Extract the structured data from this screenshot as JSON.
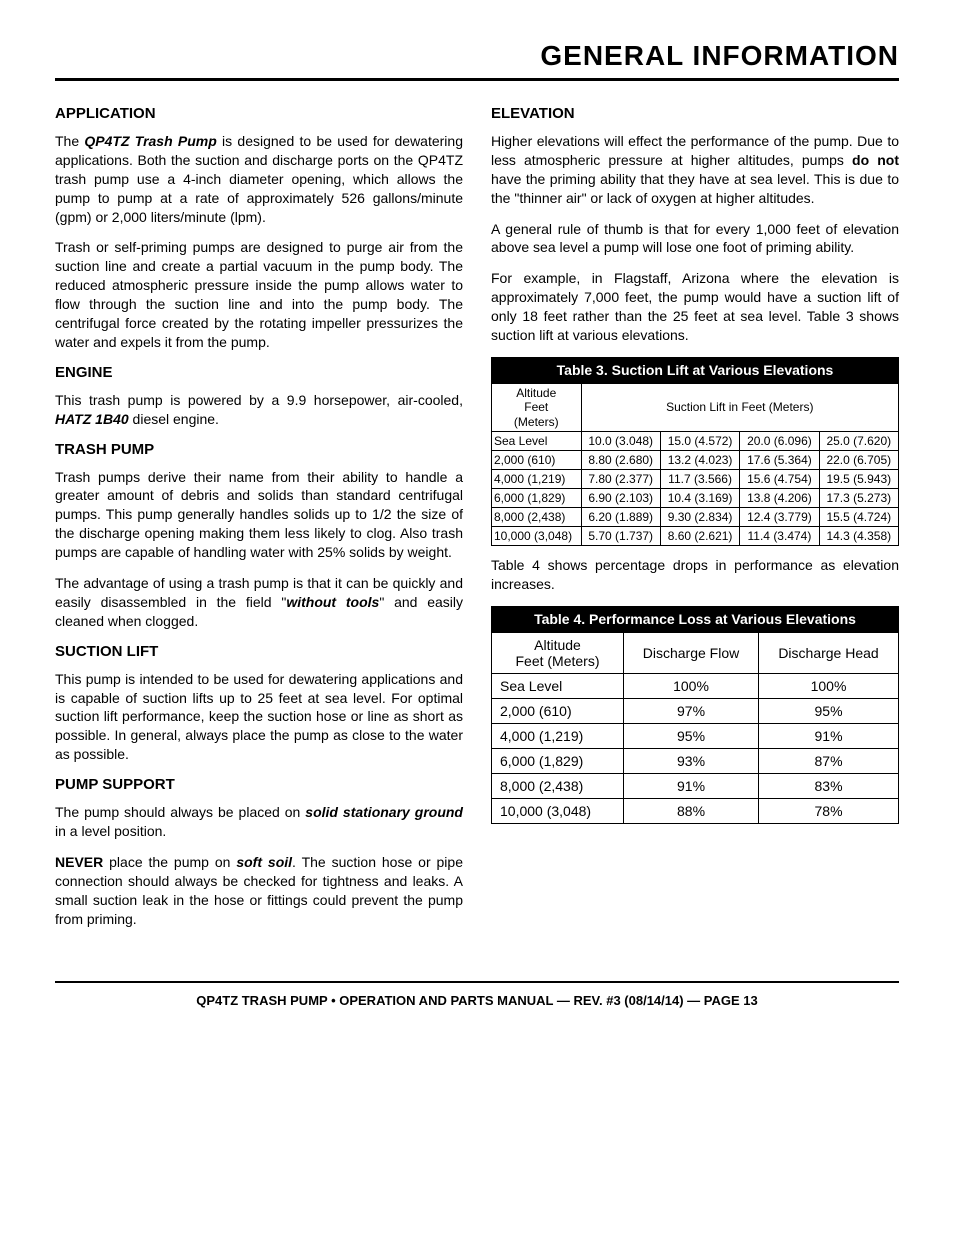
{
  "page_title": "GENERAL INFORMATION",
  "left": {
    "application_h": "APPLICATION",
    "application_p1a": "The ",
    "application_p1b": "QP4TZ Trash Pump",
    "application_p1c": " is designed to be used for dewatering applications. Both the suction and discharge ports on the QP4TZ trash pump use a 4-inch diameter opening, which allows the pump to pump at a rate of approximately 526 gallons/minute (gpm) or 2,000 liters/minute (lpm).",
    "application_p2": "Trash or self-priming pumps are designed to purge air from the suction line and create a partial vacuum in the pump body. The reduced atmospheric pressure inside the pump allows water to flow through the suction line and into the pump body. The centrifugal force created by the rotating impeller pressurizes the water and expels it from the pump.",
    "engine_h": "ENGINE",
    "engine_p1a": "This trash pump is powered by a 9.9 horsepower, air-cooled, ",
    "engine_p1b": "HATZ 1B40",
    "engine_p1c": " diesel engine.",
    "trash_h": "TRASH PUMP",
    "trash_p1": "Trash pumps derive their name from their ability to handle a greater amount of debris and solids than standard centrifugal pumps. This pump generally handles solids up to 1/2 the size of the discharge opening making them less likely to clog. Also trash pumps are capable of handling water with 25% solids by weight.",
    "trash_p2a": "The advantage of using a trash pump is that it can be quickly and easily disassembled in the field \"",
    "trash_p2b": "without tools",
    "trash_p2c": "\" and easily cleaned when clogged.",
    "suction_h": "SUCTION LIFT",
    "suction_p1": "This pump is intended to be used for dewatering applications and is capable of suction lifts up to 25 feet at sea level. For optimal suction lift performance, keep the suction hose or line as short as possible. In general, always place the pump as close to the water as possible.",
    "support_h": "PUMP SUPPORT",
    "support_p1a": "The pump should always be placed on ",
    "support_p1b": "solid stationary ground",
    "support_p1c": " in a level position.",
    "support_p2a": "NEVER",
    "support_p2b": " place the pump on ",
    "support_p2c": "soft soil",
    "support_p2d": ". The suction hose or pipe connection should always be checked for tightness and leaks. A small suction leak in the hose or fittings could prevent the pump from priming."
  },
  "right": {
    "elev_h": "ELEVATION",
    "elev_p1a": "Higher elevations will effect the performance of the pump. Due to less atmospheric pressure at higher altitudes, pumps ",
    "elev_p1b": "do not",
    "elev_p1c": " have the priming ability that they have at sea level. This is due to the \"thinner air\" or lack of oxygen at higher altitudes.",
    "elev_p2": "A general rule of thumb is that for every 1,000 feet of elevation above sea level a pump will lose one foot of priming ability.",
    "elev_p3": "For example, in Flagstaff, Arizona where the elevation is approximately 7,000 feet, the pump would have a suction lift of only 18 feet rather than the 25 feet at sea level. Table 3 shows suction lift at various elevations.",
    "between": "Table 4 shows percentage drops in performance as elevation increases."
  },
  "table3": {
    "caption": "Table 3. Suction Lift at Various Elevations",
    "col1_l1": "Altitude",
    "col1_l2": "Feet",
    "col1_l3": "(Meters)",
    "col_span": "Suction Lift in Feet (Meters)",
    "rows": [
      [
        "Sea Level",
        "10.0 (3.048)",
        "15.0 (4.572)",
        "20.0 (6.096)",
        "25.0 (7.620)"
      ],
      [
        "2,000 (610)",
        "8.80 (2.680)",
        "13.2 (4.023)",
        "17.6 (5.364)",
        "22.0 (6.705)"
      ],
      [
        "4,000 (1,219)",
        "7.80 (2.377)",
        "11.7 (3.566)",
        "15.6 (4.754)",
        "19.5 (5.943)"
      ],
      [
        "6,000 (1,829)",
        "6.90 (2.103)",
        "10.4 (3.169)",
        "13.8 (4.206)",
        "17.3 (5.273)"
      ],
      [
        "8,000 (2,438)",
        "6.20 (1.889)",
        "9.30 (2.834)",
        "12.4 (3.779)",
        "15.5 (4.724)"
      ],
      [
        "10,000 (3,048)",
        "5.70 (1.737)",
        "8.60 (2.621)",
        "11.4 (3.474)",
        "14.3 (4.358)"
      ]
    ]
  },
  "table4": {
    "caption": "Table 4. Performance Loss at Various Elevations",
    "h1_l1": "Altitude",
    "h1_l2": "Feet (Meters)",
    "h2": "Discharge Flow",
    "h3": "Discharge Head",
    "rows": [
      [
        "Sea Level",
        "100%",
        "100%"
      ],
      [
        "2,000 (610)",
        "97%",
        "95%"
      ],
      [
        "4,000 (1,219)",
        "95%",
        "91%"
      ],
      [
        "6,000 (1,829)",
        "93%",
        "87%"
      ],
      [
        "8,000 (2,438)",
        "91%",
        "83%"
      ],
      [
        "10,000 (3,048)",
        "88%",
        "78%"
      ]
    ]
  },
  "footer": "QP4TZ TRASH PUMP • OPERATION AND PARTS MANUAL — REV. #3 (08/14/14) — PAGE 13"
}
